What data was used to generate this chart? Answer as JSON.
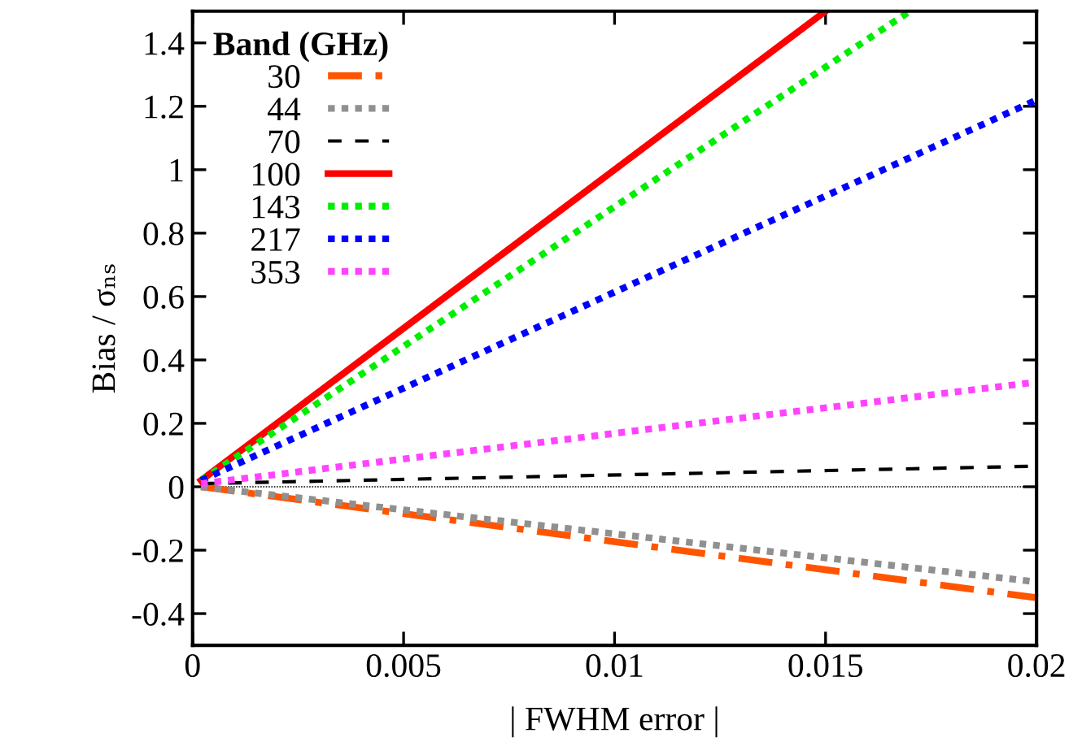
{
  "chart_data": {
    "type": "line",
    "xlabel": "| FWHM error |",
    "ylabel": "Bias / σₙₛ",
    "legend_title": "Band (GHz)",
    "legend": "top left",
    "xlim": [
      0,
      0.02
    ],
    "xticks": [
      {
        "value": 0,
        "label": "0"
      },
      0.005,
      0.01,
      0.015,
      0.02
    ],
    "ylim": [
      -0.5,
      1.5
    ],
    "yticks": [
      -0.4,
      -0.2,
      {
        "value": 0,
        "label": "0"
      },
      0.2,
      0.4,
      0.6,
      0.8,
      {
        "value": 1,
        "label": "1"
      },
      1.2,
      1.4
    ],
    "grid": false,
    "ref_lines": [
      {
        "axis": "y",
        "value": 0,
        "color": "#000000",
        "line_style": "dotted"
      }
    ],
    "series": [
      {
        "name": "30",
        "color": "#ff5500",
        "line_style": "dashdot",
        "x": [
          0.0002,
          0.02
        ],
        "values": [
          0.0,
          -0.35
        ]
      },
      {
        "name": "44",
        "color": "#909090",
        "line_style": "dotted",
        "x": [
          0.0002,
          0.02
        ],
        "values": [
          0.0,
          -0.3
        ]
      },
      {
        "name": "70",
        "color": "#000000",
        "line_style": "dashed",
        "x": [
          0.0002,
          0.02
        ],
        "values": [
          0.01,
          0.065
        ]
      },
      {
        "name": "100",
        "color": "#ff0000",
        "line_style": "solid",
        "x": [
          0.0002,
          0.015
        ],
        "values": [
          0.02,
          1.5
        ]
      },
      {
        "name": "143",
        "color": "#00ee00",
        "line_style": "dotted",
        "x": [
          0.0002,
          0.017
        ],
        "values": [
          0.02,
          1.5
        ]
      },
      {
        "name": "217",
        "color": "#0000ff",
        "line_style": "dotted",
        "x": [
          0.0002,
          0.02
        ],
        "values": [
          0.02,
          1.22
        ]
      },
      {
        "name": "353",
        "color": "#ff44ff",
        "line_style": "dotted",
        "x": [
          0.0002,
          0.02
        ],
        "values": [
          0.01,
          0.33
        ]
      }
    ]
  }
}
